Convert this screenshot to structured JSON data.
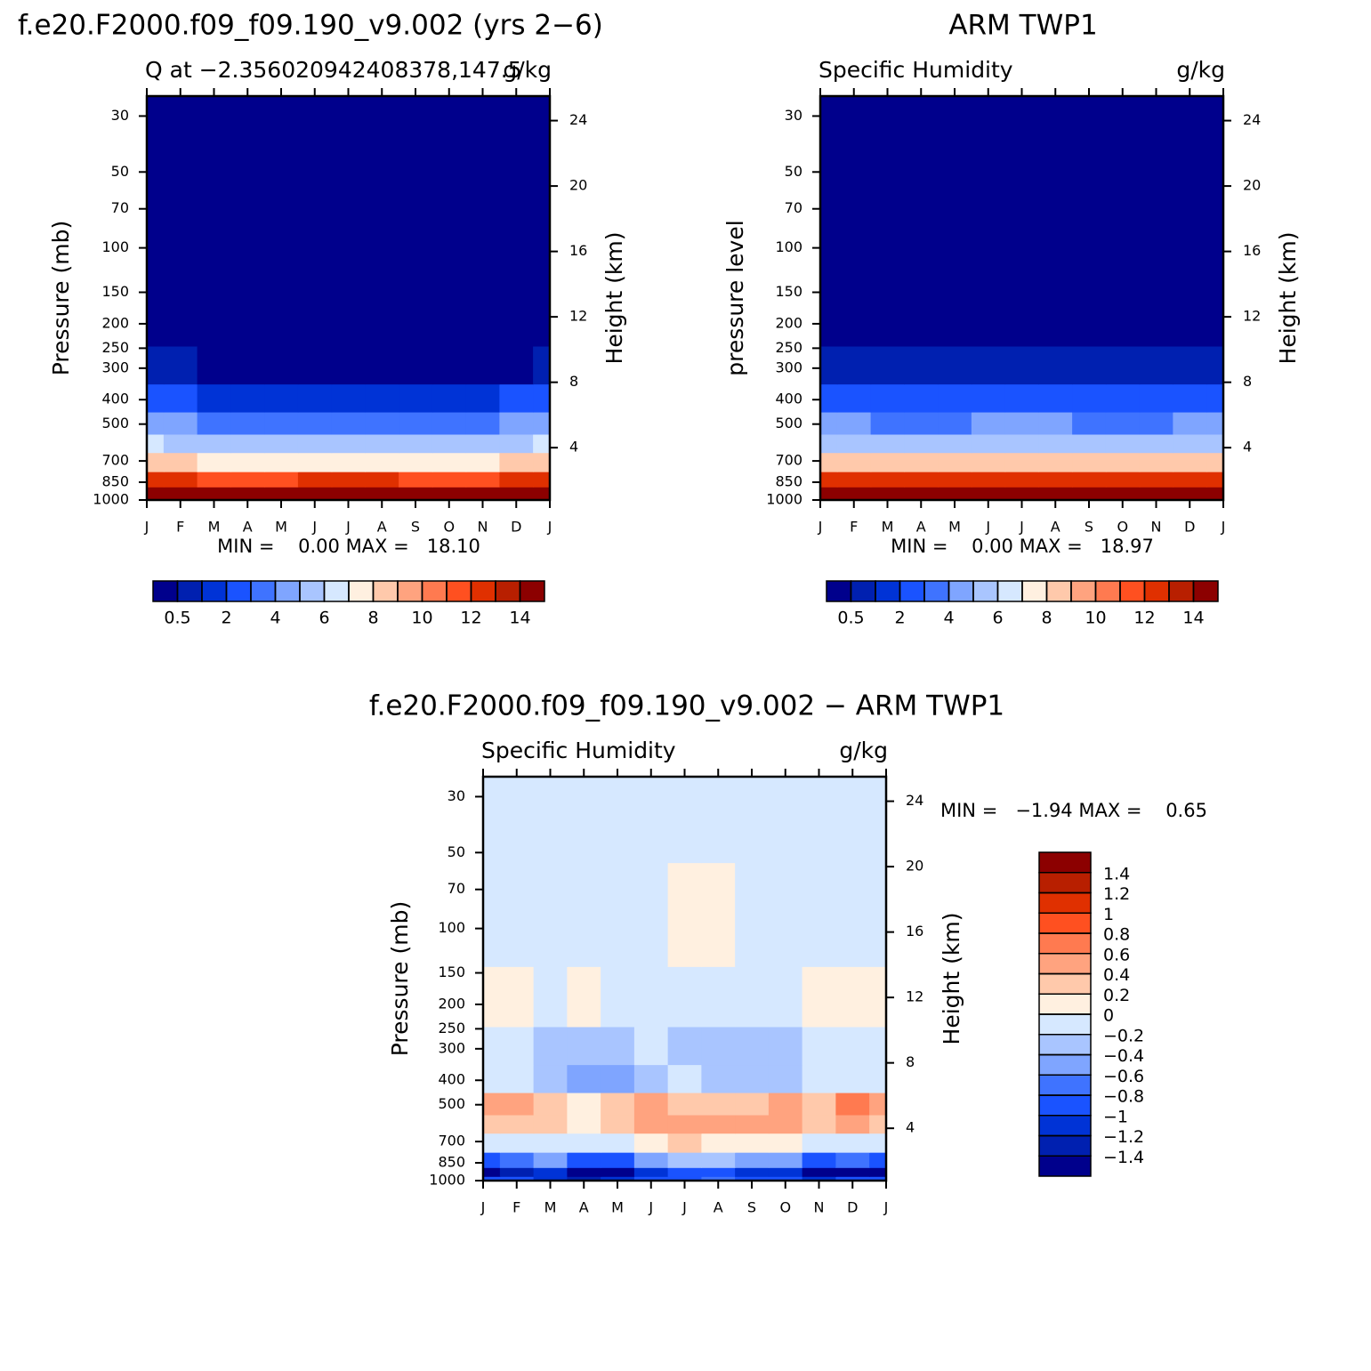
{
  "chart_data": [
    {
      "type": "contour",
      "title": "f.e20.F2000.f09_f09.190_v9.002 (yrs 2−6)",
      "subtitle_left": "Q at −2.356020942408378,147.5",
      "subtitle_right": "g/kg",
      "ylabel": "Pressure (mb)",
      "y2label": "Height (km)",
      "categories": [
        "J",
        "F",
        "M",
        "A",
        "M",
        "J",
        "J",
        "A",
        "S",
        "O",
        "N",
        "D",
        "J"
      ],
      "y": [
        1000,
        925,
        850,
        700,
        600,
        500,
        400,
        300,
        200,
        100,
        30
      ],
      "z": [
        [
          17.8,
          17.6,
          17.5,
          17.6,
          17.7,
          17.8,
          17.9,
          17.9,
          17.8,
          17.7,
          17.6,
          17.7,
          17.8
        ],
        [
          14.6,
          14.4,
          14.2,
          14.3,
          14.5,
          14.6,
          14.6,
          14.5,
          14.5,
          14.4,
          14.3,
          14.5,
          14.6
        ],
        [
          12.4,
          12.1,
          11.8,
          11.6,
          11.8,
          12.0,
          12.1,
          12.0,
          11.9,
          11.8,
          11.7,
          12.0,
          12.4
        ],
        [
          8.6,
          8.3,
          7.9,
          7.6,
          7.5,
          7.8,
          7.9,
          7.7,
          7.6,
          7.6,
          7.7,
          8.1,
          8.6
        ],
        [
          6.2,
          5.9,
          5.6,
          5.3,
          5.2,
          5.5,
          5.6,
          5.4,
          5.3,
          5.3,
          5.4,
          5.8,
          6.2
        ],
        [
          4.4,
          4.1,
          3.8,
          3.5,
          3.4,
          3.7,
          3.8,
          3.6,
          3.5,
          3.5,
          3.6,
          4.0,
          4.4
        ],
        [
          2.3,
          2.2,
          1.9,
          1.7,
          1.6,
          1.8,
          1.9,
          1.8,
          1.7,
          1.7,
          1.8,
          2.0,
          2.3
        ],
        [
          0.55,
          0.6,
          0.45,
          0.45,
          0.4,
          0.45,
          0.45,
          0.4,
          0.4,
          0.4,
          0.45,
          0.45,
          0.55
        ],
        [
          0.12,
          0.12,
          0.11,
          0.1,
          0.1,
          0.11,
          0.11,
          0.1,
          0.1,
          0.1,
          0.11,
          0.12,
          0.12
        ],
        [
          0.01,
          0.01,
          0.01,
          0.01,
          0.01,
          0.01,
          0.01,
          0.01,
          0.01,
          0.01,
          0.01,
          0.01,
          0.01
        ],
        [
          0.003,
          0.003,
          0.003,
          0.003,
          0.003,
          0.003,
          0.003,
          0.003,
          0.003,
          0.003,
          0.003,
          0.003,
          0.003
        ]
      ],
      "ylog": true,
      "ylim": [
        1000,
        25
      ],
      "yticks": [
        30,
        50,
        70,
        100,
        150,
        200,
        250,
        300,
        400,
        500,
        700,
        850,
        1000
      ],
      "y2lim": [
        0.8,
        25.5
      ],
      "y2ticks": [
        4,
        8,
        12,
        16,
        20,
        24
      ],
      "stats": "MIN =    0.00 MAX =   18.10",
      "colorbar": {
        "orientation": "horizontal",
        "levels": [
          0.5,
          1,
          2,
          3,
          4,
          5,
          6,
          7,
          8,
          9,
          10,
          11,
          12,
          13,
          14
        ],
        "ticks": [
          0.5,
          2,
          4,
          6,
          8,
          10,
          12,
          14
        ],
        "colors": [
          "#00008c",
          "#0020b0",
          "#0033d6",
          "#1a53ff",
          "#3f73ff",
          "#7fa5ff",
          "#a9c5ff",
          "#d6e8ff",
          "#fff0e0",
          "#ffc9ab",
          "#ffa37f",
          "#ff7a50",
          "#ff5020",
          "#e03000",
          "#b81f00",
          "#8c0000"
        ]
      }
    },
    {
      "type": "contour",
      "title": "ARM TWP1",
      "subtitle_left": "Specific Humidity",
      "subtitle_right": "g/kg",
      "ylabel": "pressure level",
      "y2label": "Height (km)",
      "categories": [
        "J",
        "F",
        "M",
        "A",
        "M",
        "J",
        "J",
        "A",
        "S",
        "O",
        "N",
        "D",
        "J"
      ],
      "y": [
        1000,
        925,
        850,
        700,
        600,
        500,
        400,
        300,
        200,
        100,
        30
      ],
      "z": [
        [
          18.6,
          18.5,
          18.4,
          18.3,
          18.5,
          18.7,
          18.8,
          18.9,
          18.8,
          18.6,
          18.5,
          18.6,
          18.6
        ],
        [
          15.3,
          15.1,
          14.9,
          15.0,
          15.2,
          15.3,
          15.4,
          15.3,
          15.2,
          15.0,
          14.9,
          15.1,
          15.3
        ],
        [
          12.6,
          12.4,
          12.1,
          12.3,
          12.5,
          12.6,
          12.6,
          12.5,
          12.4,
          12.2,
          12.2,
          12.4,
          12.6
        ],
        [
          8.4,
          8.3,
          8.1,
          8.0,
          8.1,
          8.2,
          8.3,
          8.2,
          8.1,
          8.0,
          8.1,
          8.3,
          8.4
        ],
        [
          5.9,
          5.8,
          5.6,
          5.5,
          5.6,
          5.7,
          5.8,
          5.7,
          5.6,
          5.5,
          5.6,
          5.8,
          5.9
        ],
        [
          4.2,
          4.1,
          3.9,
          3.8,
          3.9,
          4.0,
          4.1,
          4.0,
          3.9,
          3.8,
          3.9,
          4.1,
          4.2
        ],
        [
          2.4,
          2.3,
          2.2,
          2.1,
          2.2,
          2.3,
          2.3,
          2.2,
          2.1,
          2.1,
          2.2,
          2.3,
          2.4
        ],
        [
          0.6,
          0.6,
          0.55,
          0.55,
          0.55,
          0.55,
          0.55,
          0.55,
          0.55,
          0.55,
          0.6,
          0.55,
          0.6
        ],
        [
          0.15,
          0.15,
          0.14,
          0.14,
          0.14,
          0.15,
          0.15,
          0.14,
          0.14,
          0.14,
          0.15,
          0.15,
          0.15
        ],
        [
          0.01,
          0.01,
          0.01,
          0.01,
          0.01,
          0.01,
          0.01,
          0.01,
          0.01,
          0.01,
          0.01,
          0.01,
          0.01
        ],
        [
          0.003,
          0.003,
          0.003,
          0.003,
          0.003,
          0.003,
          0.003,
          0.003,
          0.003,
          0.003,
          0.003,
          0.003,
          0.003
        ]
      ],
      "ylog": true,
      "ylim": [
        1000,
        25
      ],
      "yticks": [
        30,
        50,
        70,
        100,
        150,
        200,
        250,
        300,
        400,
        500,
        700,
        850,
        1000
      ],
      "y2lim": [
        0.8,
        25.5
      ],
      "y2ticks": [
        4,
        8,
        12,
        16,
        20,
        24
      ],
      "stats": "MIN =    0.00 MAX =   18.97",
      "colorbar": {
        "orientation": "horizontal",
        "levels": [
          0.5,
          1,
          2,
          3,
          4,
          5,
          6,
          7,
          8,
          9,
          10,
          11,
          12,
          13,
          14
        ],
        "ticks": [
          0.5,
          2,
          4,
          6,
          8,
          10,
          12,
          14
        ],
        "colors": [
          "#00008c",
          "#0020b0",
          "#0033d6",
          "#1a53ff",
          "#3f73ff",
          "#7fa5ff",
          "#a9c5ff",
          "#d6e8ff",
          "#fff0e0",
          "#ffc9ab",
          "#ffa37f",
          "#ff7a50",
          "#ff5020",
          "#e03000",
          "#b81f00",
          "#8c0000"
        ]
      }
    },
    {
      "type": "contour",
      "title": "f.e20.F2000.f09_f09.190_v9.002 − ARM TWP1",
      "subtitle_left": "Specific Humidity",
      "subtitle_right": "g/kg",
      "ylabel": "Pressure (mb)",
      "y2label": "Height (km)",
      "categories": [
        "J",
        "F",
        "M",
        "A",
        "M",
        "J",
        "J",
        "A",
        "S",
        "O",
        "N",
        "D",
        "J"
      ],
      "y": [
        1000,
        925,
        850,
        700,
        600,
        500,
        400,
        300,
        200,
        100,
        30
      ],
      "z": [
        [
          -0.9,
          -1.0,
          -1.1,
          -1.3,
          -1.2,
          -1.0,
          -0.9,
          -0.8,
          -0.9,
          -1.0,
          -1.2,
          -1.0,
          -0.9
        ],
        [
          -1.5,
          -1.3,
          -1.2,
          -1.6,
          -1.5,
          -1.1,
          -1.0,
          -1.0,
          -1.1,
          -1.2,
          -1.6,
          -1.5,
          -1.5
        ],
        [
          -0.9,
          -0.7,
          -0.6,
          -1.0,
          -0.9,
          -0.5,
          -0.4,
          -0.4,
          -0.5,
          -0.6,
          -0.9,
          -0.8,
          -0.9
        ],
        [
          -0.1,
          -0.1,
          -0.15,
          -0.2,
          -0.1,
          0.1,
          0.2,
          0.15,
          0.1,
          0.1,
          -0.05,
          -0.1,
          -0.1
        ],
        [
          0.3,
          0.35,
          0.25,
          0.1,
          0.3,
          0.55,
          0.5,
          0.45,
          0.5,
          0.45,
          0.2,
          0.4,
          0.3
        ],
        [
          0.55,
          0.45,
          0.3,
          0.05,
          0.2,
          0.4,
          0.35,
          0.3,
          0.35,
          0.5,
          0.3,
          0.6,
          0.55
        ],
        [
          -0.1,
          -0.2,
          -0.35,
          -0.5,
          -0.45,
          -0.25,
          -0.2,
          -0.25,
          -0.3,
          -0.3,
          -0.2,
          -0.15,
          -0.1
        ],
        [
          -0.2,
          -0.1,
          -0.25,
          -0.3,
          -0.3,
          -0.2,
          -0.25,
          -0.3,
          -0.3,
          -0.25,
          -0.1,
          -0.1,
          -0.2
        ],
        [
          0.1,
          0.05,
          -0.05,
          0.05,
          -0.05,
          -0.1,
          -0.1,
          -0.1,
          -0.1,
          -0.05,
          0.05,
          0.1,
          0.05
        ],
        [
          -0.05,
          -0.05,
          -0.05,
          -0.05,
          -0.05,
          -0.05,
          0.05,
          0.05,
          -0.05,
          -0.05,
          -0.05,
          -0.05,
          -0.05
        ],
        [
          -0.05,
          -0.05,
          -0.05,
          -0.05,
          -0.05,
          -0.05,
          -0.05,
          -0.05,
          -0.05,
          -0.05,
          -0.05,
          -0.05,
          -0.05
        ]
      ],
      "ylog": true,
      "ylim": [
        1000,
        25
      ],
      "yticks": [
        30,
        50,
        70,
        100,
        150,
        200,
        250,
        300,
        400,
        500,
        700,
        850,
        1000
      ],
      "y2lim": [
        0.8,
        25.5
      ],
      "y2ticks": [
        4,
        8,
        12,
        16,
        20,
        24
      ],
      "stats": "MIN =   −1.94 MAX =    0.65",
      "colorbar": {
        "orientation": "vertical",
        "levels": [
          -1.4,
          -1.2,
          -1,
          -0.8,
          -0.6,
          -0.4,
          -0.2,
          0,
          0.2,
          0.4,
          0.6,
          0.8,
          1,
          1.2,
          1.4
        ],
        "ticks": [
          {
            "value": -1.4,
            "label": "−1.4"
          },
          {
            "value": -1.2,
            "label": "−1.2"
          },
          {
            "value": -1,
            "label": "−1"
          },
          {
            "value": -0.8,
            "label": "−0.8"
          },
          {
            "value": -0.6,
            "label": "−0.6"
          },
          {
            "value": -0.4,
            "label": "−0.4"
          },
          {
            "value": -0.2,
            "label": "−0.2"
          },
          0,
          0.2,
          0.4,
          0.6,
          0.8,
          1,
          1.2,
          1.4
        ],
        "colors": [
          "#00008c",
          "#0020b0",
          "#0033d6",
          "#1a53ff",
          "#3f73ff",
          "#7fa5ff",
          "#a9c5ff",
          "#d6e8ff",
          "#fff0e0",
          "#ffc9ab",
          "#ffa37f",
          "#ff7a50",
          "#ff5020",
          "#e03000",
          "#b81f00",
          "#8c0000"
        ]
      }
    }
  ]
}
